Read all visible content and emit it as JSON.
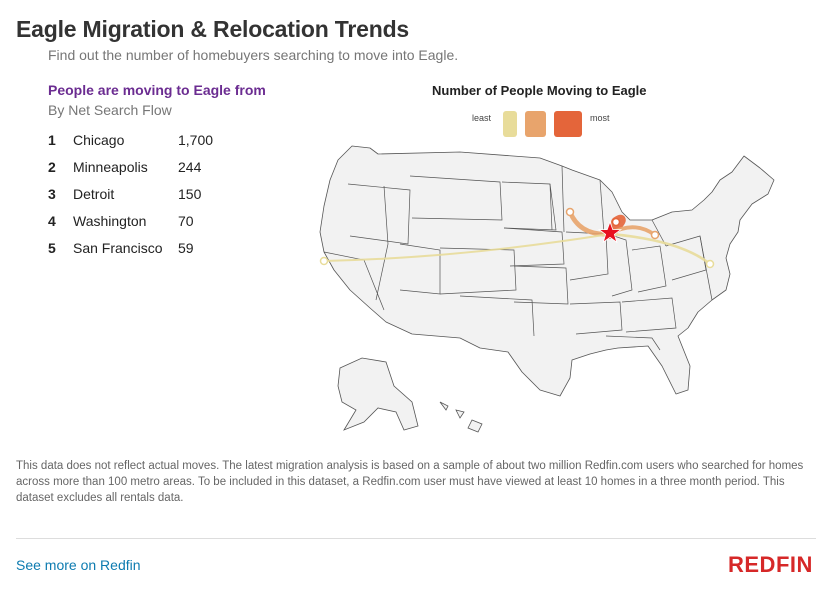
{
  "header": {
    "title": "Eagle Migration & Relocation Trends",
    "subtitle": "Find out the number of homebuyers searching to move into Eagle."
  },
  "list": {
    "heading": "People are moving to Eagle from",
    "subheading": "By Net Search Flow",
    "items": [
      {
        "rank": "1",
        "city": "Chicago",
        "value": "1,700"
      },
      {
        "rank": "2",
        "city": "Minneapolis",
        "value": "244"
      },
      {
        "rank": "3",
        "city": "Detroit",
        "value": "150"
      },
      {
        "rank": "4",
        "city": "Washington",
        "value": "70"
      },
      {
        "rank": "5",
        "city": "San Francisco",
        "value": "59"
      }
    ]
  },
  "legend": {
    "title": "Number of People Moving to Eagle",
    "least_label": "least",
    "most_label": "most",
    "colors": [
      "#e8dc9a",
      "#e8a46c",
      "#e4653a"
    ]
  },
  "map": {
    "destination": "Eagle",
    "marker_color": "#e8101e",
    "origins": [
      {
        "city": "Chicago",
        "value": 1700
      },
      {
        "city": "Minneapolis",
        "value": 244
      },
      {
        "city": "Detroit",
        "value": 150
      },
      {
        "city": "Washington",
        "value": 70
      },
      {
        "city": "San Francisco",
        "value": 59
      }
    ]
  },
  "footer": {
    "disclaimer": "This data does not reflect actual moves. The latest migration analysis is based on a sample of about two million Redfin.com users who searched for homes across more than 100 metro areas. To be included in this dataset, a Redfin.com user must have viewed at least 10 homes in a three month period. This dataset excludes all rentals data.",
    "link": "See more on Redfin",
    "logo": "REDFIN",
    "logo_color": "#d62828"
  }
}
